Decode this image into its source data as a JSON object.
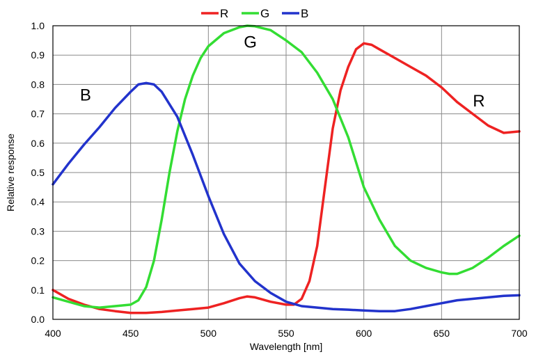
{
  "chart_data": {
    "type": "line",
    "title": "",
    "xlabel": "Wavelength [nm]",
    "ylabel": "Relative response",
    "xlim": [
      400,
      700
    ],
    "ylim": [
      0,
      1.0
    ],
    "xticks": [
      400,
      450,
      500,
      550,
      600,
      650,
      700
    ],
    "yticks": [
      0.0,
      0.1,
      0.2,
      0.3,
      0.4,
      0.5,
      0.6,
      0.7,
      0.8,
      0.9,
      1.0
    ],
    "xtick_labels": [
      "400",
      "450",
      "500",
      "550",
      "600",
      "650",
      "700"
    ],
    "ytick_labels": [
      "0.0",
      "0.1",
      "0.2",
      "0.3",
      "0.4",
      "0.5",
      "0.6",
      "0.7",
      "0.8",
      "0.9",
      "1.0"
    ],
    "grid": true,
    "legend_position": "top-center",
    "series": [
      {
        "name": "R",
        "color": "#ee2222",
        "x": [
          400,
          410,
          420,
          430,
          440,
          450,
          460,
          470,
          480,
          490,
          500,
          510,
          520,
          525,
          530,
          540,
          550,
          555,
          560,
          565,
          570,
          575,
          580,
          585,
          590,
          595,
          600,
          605,
          610,
          620,
          630,
          640,
          650,
          660,
          670,
          680,
          690,
          700
        ],
        "y": [
          0.1,
          0.07,
          0.05,
          0.035,
          0.028,
          0.022,
          0.022,
          0.025,
          0.03,
          0.035,
          0.04,
          0.055,
          0.072,
          0.078,
          0.075,
          0.06,
          0.05,
          0.05,
          0.07,
          0.13,
          0.25,
          0.45,
          0.65,
          0.78,
          0.86,
          0.92,
          0.94,
          0.935,
          0.92,
          0.89,
          0.86,
          0.83,
          0.79,
          0.74,
          0.7,
          0.66,
          0.635,
          0.64
        ]
      },
      {
        "name": "G",
        "color": "#33dd33",
        "x": [
          400,
          410,
          420,
          430,
          440,
          450,
          455,
          460,
          465,
          470,
          475,
          480,
          485,
          490,
          495,
          500,
          510,
          520,
          525,
          530,
          540,
          550,
          560,
          570,
          580,
          590,
          600,
          610,
          620,
          630,
          640,
          650,
          655,
          660,
          670,
          680,
          690,
          700
        ],
        "y": [
          0.075,
          0.06,
          0.045,
          0.04,
          0.045,
          0.05,
          0.065,
          0.11,
          0.2,
          0.34,
          0.5,
          0.64,
          0.75,
          0.83,
          0.89,
          0.93,
          0.975,
          0.995,
          1.0,
          0.998,
          0.985,
          0.95,
          0.91,
          0.84,
          0.75,
          0.62,
          0.45,
          0.34,
          0.25,
          0.2,
          0.175,
          0.16,
          0.155,
          0.155,
          0.175,
          0.21,
          0.25,
          0.285
        ]
      },
      {
        "name": "B",
        "color": "#2233cc",
        "x": [
          400,
          410,
          420,
          430,
          440,
          450,
          455,
          460,
          465,
          470,
          480,
          490,
          500,
          510,
          520,
          530,
          540,
          550,
          560,
          570,
          580,
          590,
          600,
          610,
          620,
          630,
          640,
          650,
          660,
          670,
          680,
          690,
          700
        ],
        "y": [
          0.46,
          0.53,
          0.595,
          0.655,
          0.72,
          0.775,
          0.8,
          0.805,
          0.8,
          0.775,
          0.69,
          0.56,
          0.42,
          0.29,
          0.19,
          0.13,
          0.09,
          0.06,
          0.045,
          0.04,
          0.035,
          0.033,
          0.03,
          0.028,
          0.028,
          0.035,
          0.045,
          0.055,
          0.065,
          0.07,
          0.075,
          0.08,
          0.082
        ]
      }
    ],
    "annotations": [
      {
        "text": "B",
        "x": 421,
        "y": 0.745
      },
      {
        "text": "G",
        "x": 527,
        "y": 0.925
      },
      {
        "text": "R",
        "x": 674,
        "y": 0.725
      }
    ]
  }
}
